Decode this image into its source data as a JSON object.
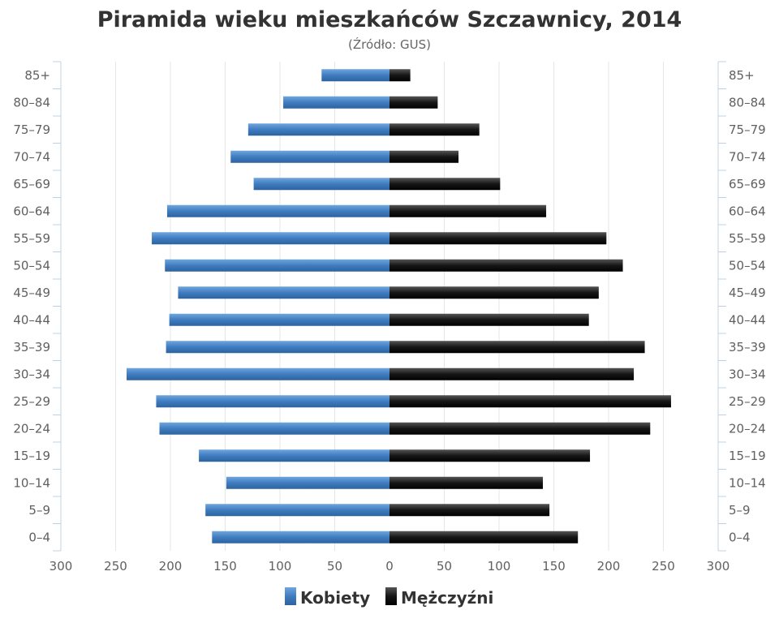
{
  "chart_data": {
    "type": "bar",
    "orientation": "horizontal",
    "layout": "population-pyramid",
    "title": "Piramida wieku mieszkańców Szczawnicy, 2014",
    "subtitle": "(Źródło: GUS)",
    "categories": [
      "85+",
      "80–84",
      "75–79",
      "70–74",
      "65–69",
      "60–64",
      "55–59",
      "50–54",
      "45–49",
      "40–44",
      "35–39",
      "30–34",
      "25–29",
      "20–24",
      "15–19",
      "10–14",
      "5–9",
      "0–4"
    ],
    "series": [
      {
        "name": "Kobiety",
        "side": "left",
        "color": "#4d86c4",
        "values": [
          62,
          97,
          129,
          145,
          124,
          203,
          217,
          205,
          193,
          201,
          204,
          240,
          213,
          210,
          174,
          149,
          168,
          162
        ]
      },
      {
        "name": "Mężczyźni",
        "side": "right",
        "color": "#222222",
        "values": [
          19,
          44,
          82,
          63,
          101,
          143,
          198,
          213,
          191,
          182,
          233,
          223,
          257,
          238,
          183,
          140,
          146,
          172
        ]
      }
    ],
    "x_ticks": [
      300,
      250,
      200,
      150,
      100,
      50,
      0,
      50,
      100,
      150,
      200,
      250,
      300
    ],
    "xlim": [
      -300,
      300
    ],
    "grid": true,
    "legend": "bottom-center"
  }
}
